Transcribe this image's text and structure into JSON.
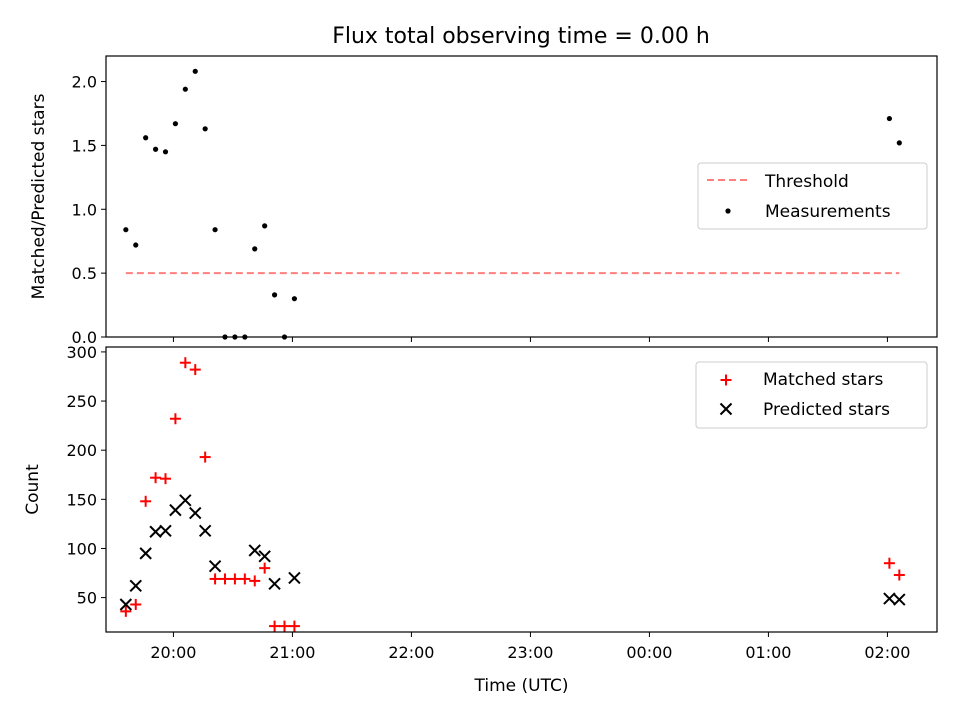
{
  "figure": {
    "title": "Flux total observing time = 0.00 h",
    "xlabel": "Time (UTC)"
  },
  "chart_data": [
    {
      "type": "scatter",
      "panel": "top",
      "title": "Flux total observing time = 0.00 h",
      "xlabel": "",
      "ylabel": "Matched/Predicted stars",
      "xlim": [
        "19:26",
        "02:25"
      ],
      "ylim": [
        0,
        2.2
      ],
      "yticks": [
        "0.0",
        "0.5",
        "1.0",
        "1.5",
        "2.0"
      ],
      "yticks_values": [
        0,
        0.5,
        1.0,
        1.5,
        2.0
      ],
      "legend_position": "center-right",
      "series": [
        {
          "name": "Threshold",
          "style": "dashed-line",
          "color": "#ff7f7f",
          "x": [
            "19:36",
            "02:06"
          ],
          "y": [
            0.5,
            0.5
          ]
        },
        {
          "name": "Measurements",
          "style": "dot",
          "color": "#000000",
          "x": [
            "19:36",
            "19:41",
            "19:46",
            "19:51",
            "19:56",
            "20:01",
            "20:06",
            "20:11",
            "20:16",
            "20:21",
            "20:26",
            "20:31",
            "20:36",
            "20:41",
            "20:46",
            "20:51",
            "20:56",
            "21:01",
            "02:01",
            "02:06"
          ],
          "y": [
            0.84,
            0.72,
            1.56,
            1.47,
            1.45,
            1.67,
            1.94,
            2.08,
            1.63,
            0.84,
            0.0,
            0.0,
            0.0,
            0.69,
            0.87,
            0.33,
            0.0,
            0.3,
            1.71,
            1.52
          ]
        }
      ]
    },
    {
      "type": "scatter",
      "panel": "bottom",
      "xlabel": "Time (UTC)",
      "ylabel": "Count",
      "xlim": [
        "19:26",
        "02:25"
      ],
      "ylim": [
        15,
        305
      ],
      "yticks": [
        "50",
        "100",
        "150",
        "200",
        "250",
        "300"
      ],
      "yticks_values": [
        50,
        100,
        150,
        200,
        250,
        300
      ],
      "xticks": [
        "20:00",
        "21:00",
        "22:00",
        "23:00",
        "00:00",
        "01:00",
        "02:00"
      ],
      "legend_position": "top-right",
      "series": [
        {
          "name": "Matched stars",
          "marker": "plus",
          "color": "#ff0000",
          "x": [
            "19:36",
            "19:41",
            "19:46",
            "19:51",
            "19:56",
            "20:01",
            "20:06",
            "20:11",
            "20:16",
            "20:21",
            "20:26",
            "20:31",
            "20:36",
            "20:41",
            "20:46",
            "20:51",
            "20:56",
            "21:01",
            "02:01",
            "02:06"
          ],
          "y": [
            36,
            43,
            148,
            172,
            171,
            232,
            289,
            282,
            193,
            69,
            69,
            69,
            69,
            67,
            80,
            21,
            21,
            21,
            85,
            73
          ]
        },
        {
          "name": "Predicted stars",
          "marker": "x",
          "color": "#000000",
          "x": [
            "19:36",
            "19:41",
            "19:46",
            "19:51",
            "19:56",
            "20:01",
            "20:06",
            "20:11",
            "20:16",
            "20:21",
            "20:41",
            "20:46",
            "20:51",
            "21:01",
            "02:01",
            "02:06"
          ],
          "y": [
            43,
            62,
            95,
            117,
            118,
            139,
            149,
            136,
            118,
            82,
            98,
            92,
            64,
            70,
            49,
            48
          ]
        }
      ]
    }
  ]
}
